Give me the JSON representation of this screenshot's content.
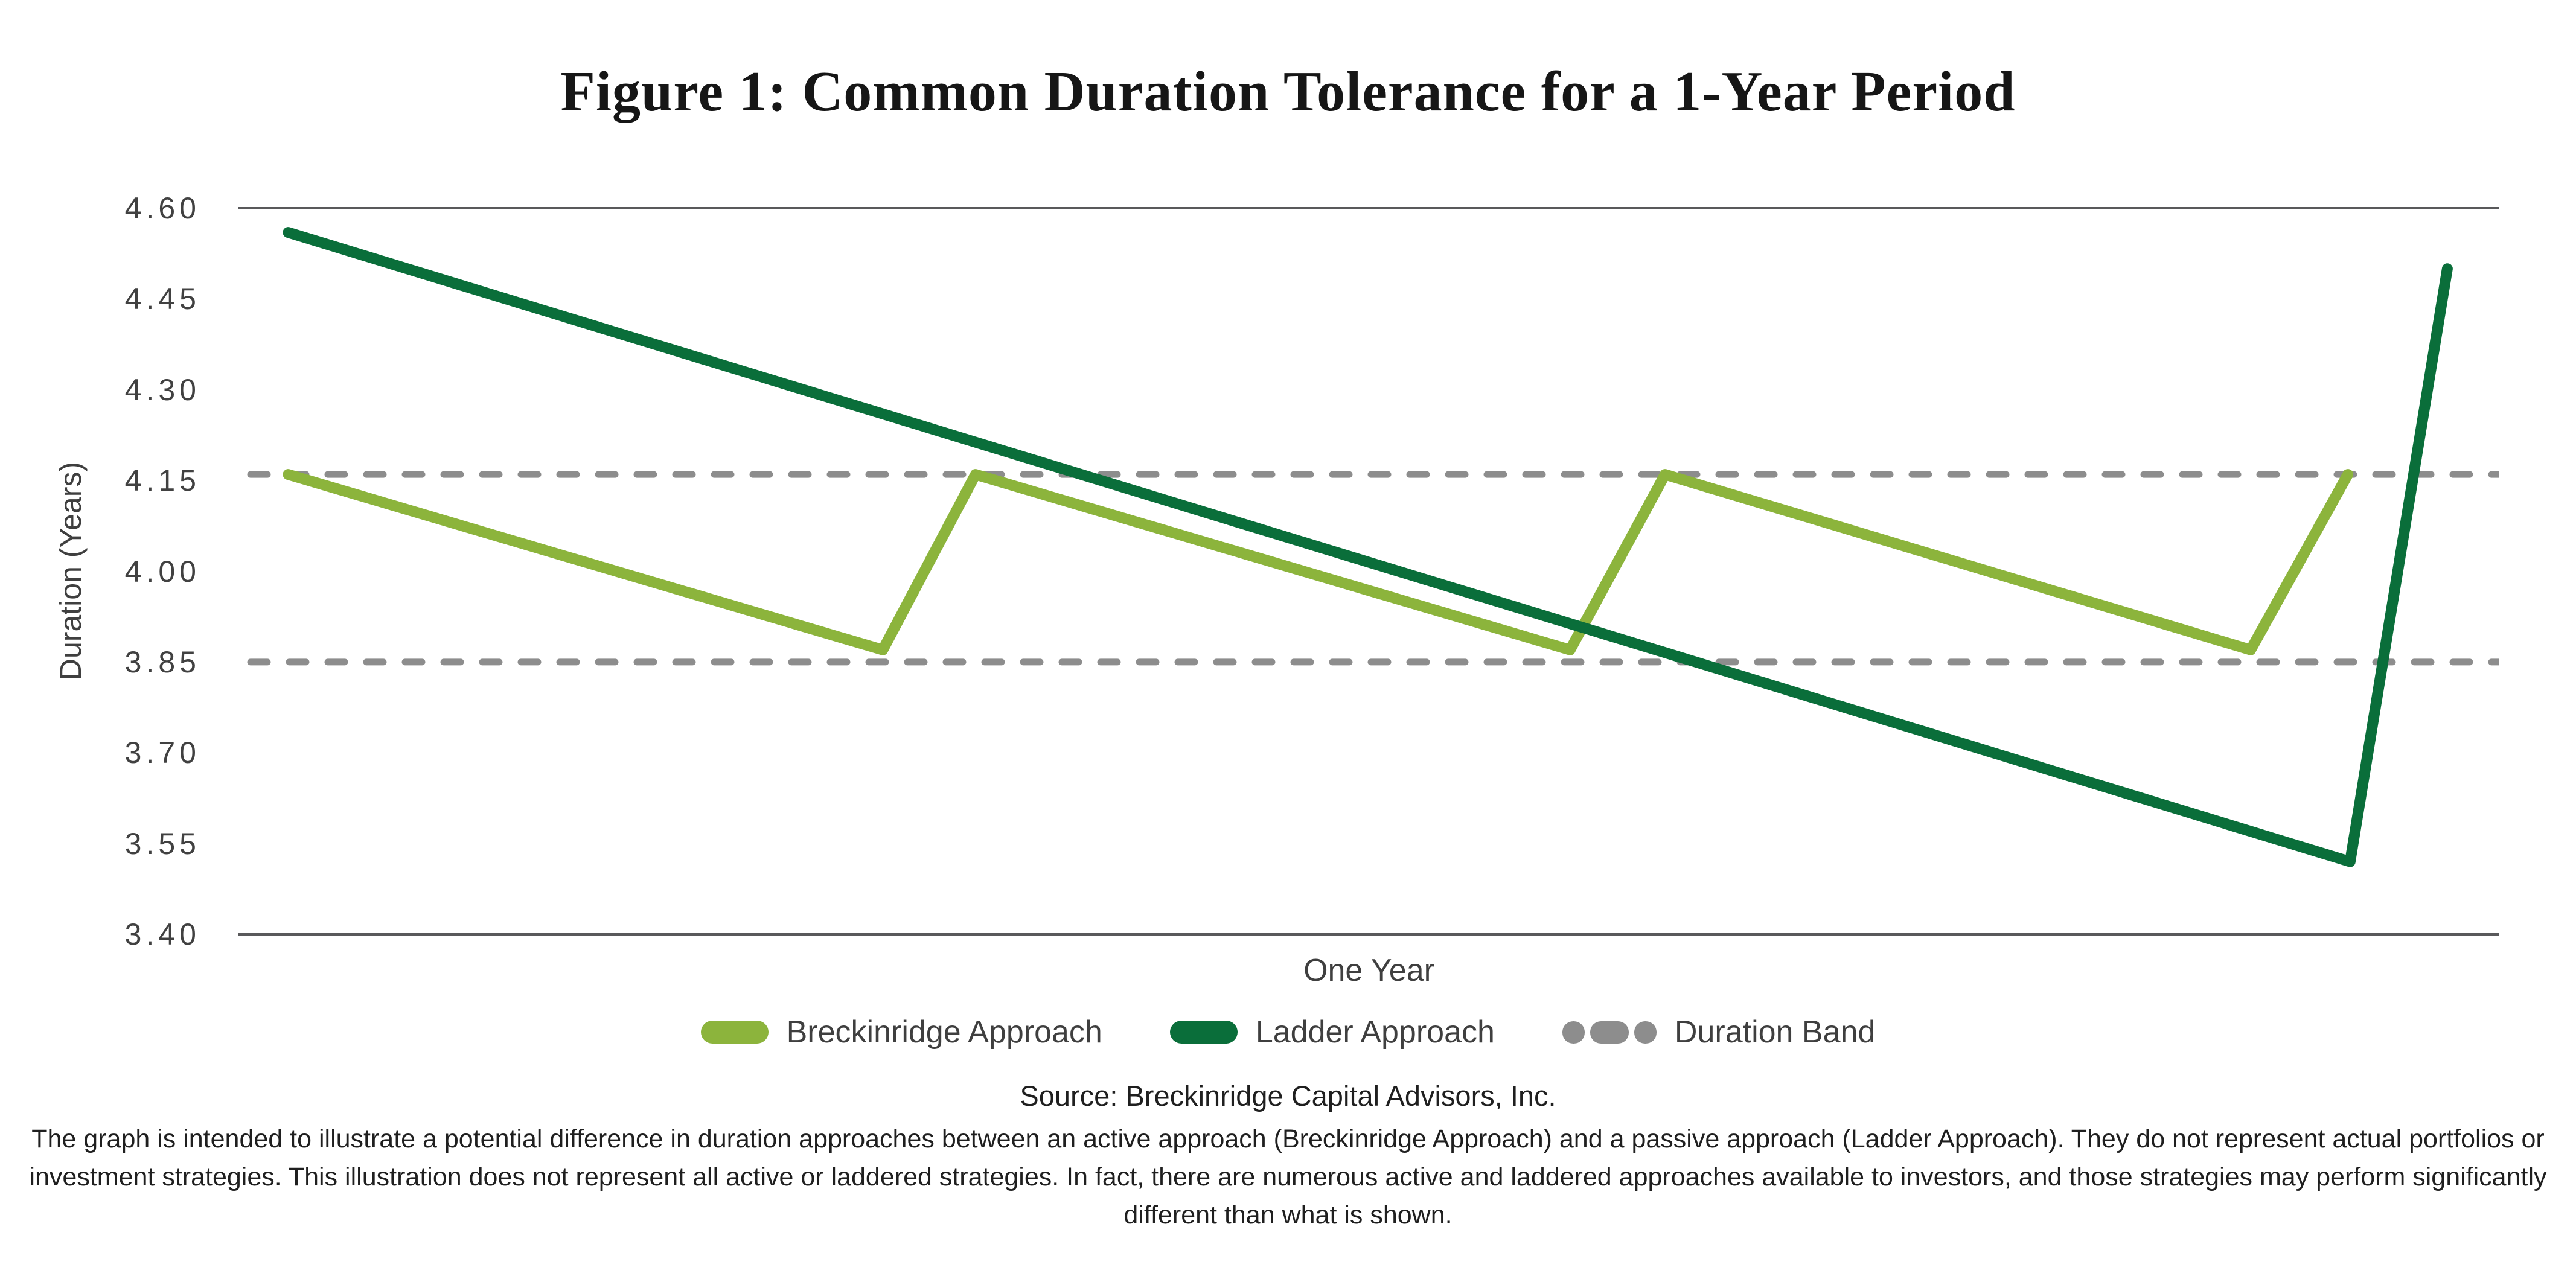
{
  "title": "Figure 1: Common Duration Tolerance for a 1-Year Period",
  "chart_data": {
    "type": "line",
    "title": "Figure 1: Common Duration Tolerance for a 1-Year Period",
    "xlabel": "One Year",
    "ylabel": "Duration (Years)",
    "ylim": [
      3.4,
      4.6
    ],
    "yticks": [
      "4.60",
      "4.45",
      "4.30",
      "4.15",
      "4.00",
      "3.85",
      "3.70",
      "3.55",
      "3.40"
    ],
    "x_range": "one year (no numeric x ticks shown)",
    "grid": "top and bottom horizontal spines only",
    "legend_position": "bottom center",
    "band": {
      "label": "Duration Band",
      "upper": 4.16,
      "lower": 3.85,
      "style": "dashed",
      "color": "#8D8D8D"
    },
    "series": [
      {
        "name": "Breckinridge Approach",
        "color": "#8CB43C",
        "shape": "sawtooth between duration band",
        "points": [
          {
            "x": 0.022,
            "y": 4.16
          },
          {
            "x": 0.285,
            "y": 3.87
          },
          {
            "x": 0.326,
            "y": 4.16
          },
          {
            "x": 0.589,
            "y": 3.87
          },
          {
            "x": 0.631,
            "y": 4.16
          },
          {
            "x": 0.89,
            "y": 3.87
          },
          {
            "x": 0.933,
            "y": 4.16
          }
        ]
      },
      {
        "name": "Ladder Approach",
        "color": "#0A6E3A",
        "shape": "long linear decline then sharp rise",
        "points": [
          {
            "x": 0.022,
            "y": 4.56
          },
          {
            "x": 0.934,
            "y": 3.52
          },
          {
            "x": 0.977,
            "y": 4.5
          }
        ]
      }
    ]
  },
  "legend": {
    "items": [
      {
        "label": "Breckinridge Approach",
        "swatch": "line",
        "color": "#8CB43C"
      },
      {
        "label": "Ladder Approach",
        "swatch": "line",
        "color": "#0A6E3A"
      },
      {
        "label": "Duration Band",
        "swatch": "dashes",
        "color": "#8D8D8D"
      }
    ]
  },
  "source": "Source: Breckinridge Capital Advisors, Inc.",
  "disclaimer": "The graph is intended to illustrate a potential difference in duration approaches between an active approach (Breckinridge Approach) and a passive approach (Ladder Approach). They do not represent actual portfolios or investment strategies. This illustration does not represent all active or laddered strategies. In fact, there are numerous active and laddered approaches available to investors, and those strategies may perform significantly different than what is shown.",
  "colors": {
    "breckinridge_green": "#8CB43C",
    "ladder_green": "#0A6E3A",
    "band_gray": "#8D8D8D",
    "spine_gray": "#59595B",
    "text_dark": "#1f1f1f",
    "text_gray": "#3f3f3f",
    "background": "#FFFFFF"
  }
}
